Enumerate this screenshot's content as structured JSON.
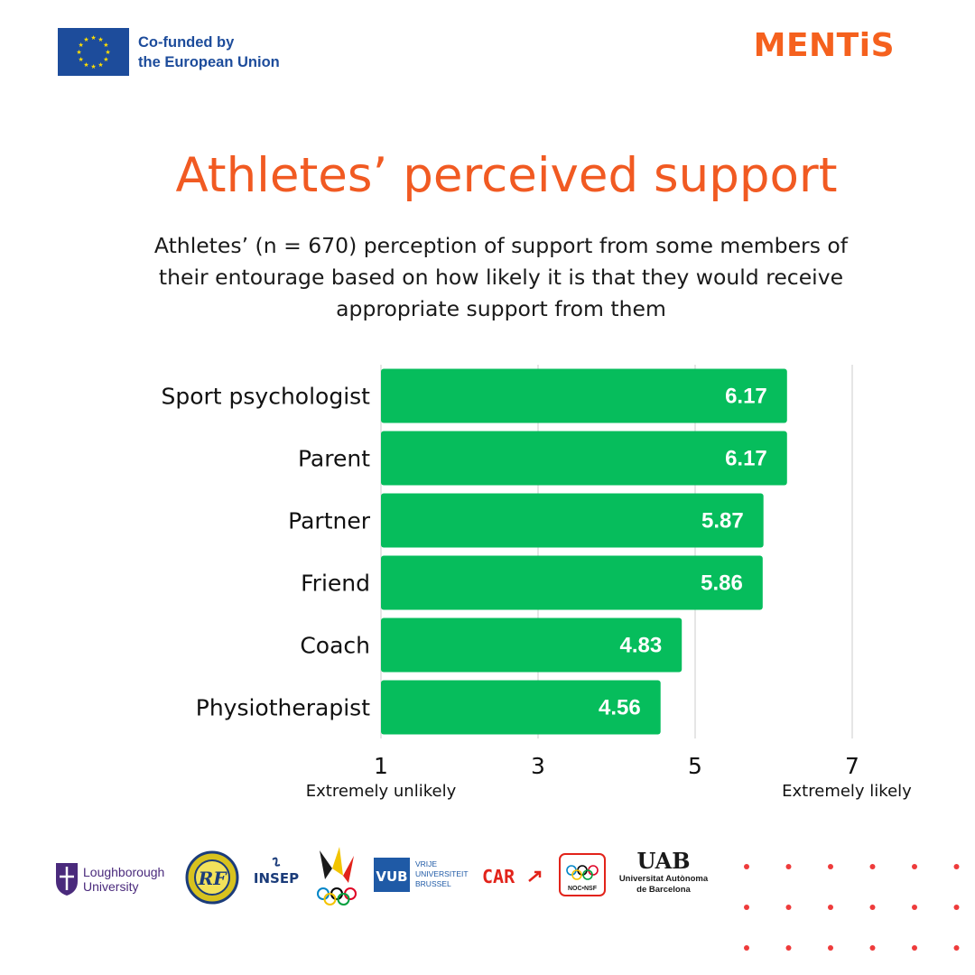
{
  "header": {
    "eu_line1": "Co-funded by",
    "eu_line2": "the European Union",
    "brand": "MENTiS"
  },
  "title": "Athletes’ perceived support",
  "subtitle": "Athletes’ (n = 670) perception of support from some members of their entourage based on how likely it is that they would receive appropriate support from them",
  "colors": {
    "bar": "#06bd5c",
    "accent": "#f15a22",
    "eu_blue": "#1d4c9b",
    "dots": "#ee3b3b"
  },
  "chart_data": {
    "type": "bar",
    "orientation": "horizontal",
    "categories": [
      "Sport psychologist",
      "Parent",
      "Partner",
      "Friend",
      "Coach",
      "Physiotherapist"
    ],
    "values": [
      6.17,
      6.17,
      5.87,
      5.86,
      4.83,
      4.56
    ],
    "value_labels": [
      "6.17",
      "6.17",
      "5.87",
      "5.86",
      "4.83",
      "4.56"
    ],
    "xlim": [
      1,
      7
    ],
    "ticks": [
      "1",
      "3",
      "5",
      "7"
    ],
    "tick_values": [
      1,
      3,
      5,
      7
    ],
    "tick_captions": {
      "start": "Extremely unlikely",
      "end": "Extremely likely"
    },
    "grid": "vertical"
  },
  "logos": {
    "loughborough_line1": "Loughborough",
    "loughborough_line2": "University",
    "insep": "INSEP",
    "vub": "VUB",
    "vub_line1": "VRIJE",
    "vub_line2": "UNIVERSITEIT",
    "vub_line3": "BRUSSEL",
    "car": "CAR",
    "noc": "NOC•NSF",
    "uab": "UAB",
    "uab_line1": "Universitat Autònoma",
    "uab_line2": "de Barcelona"
  }
}
